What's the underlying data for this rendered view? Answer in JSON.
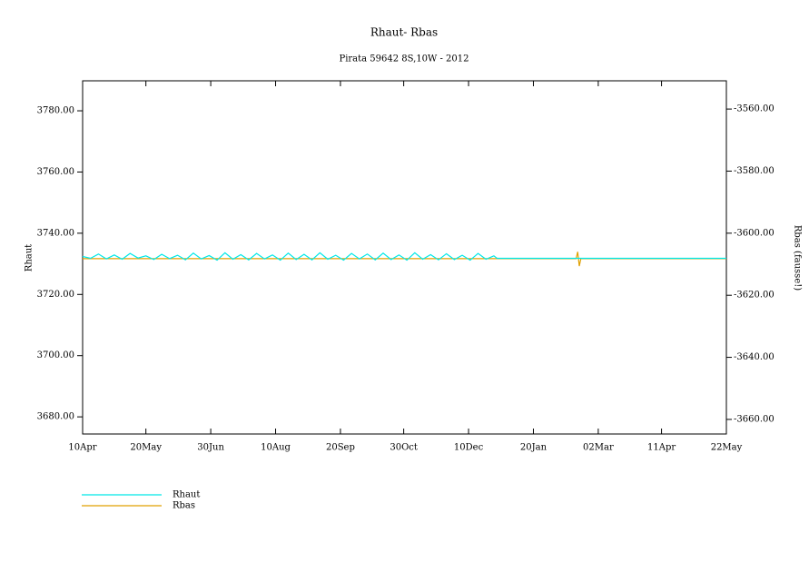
{
  "chart_data": {
    "type": "line",
    "title": "Rhaut-  Rbas",
    "subtitle": "Pirata 59642 8S,10W - 2012",
    "ylabel": "Rhaut",
    "y2label": "Rbas (fausse!)",
    "xlim": [
      0,
      407
    ],
    "xticks": [
      {
        "value": 0,
        "label": "10Apr"
      },
      {
        "value": 40,
        "label": "20May"
      },
      {
        "value": 81,
        "label": "30Jun"
      },
      {
        "value": 122,
        "label": "10Aug"
      },
      {
        "value": 163,
        "label": "20Sep"
      },
      {
        "value": 203,
        "label": "30Oct"
      },
      {
        "value": 244,
        "label": "10Dec"
      },
      {
        "value": 285,
        "label": "20Jan"
      },
      {
        "value": 326,
        "label": "02Mar"
      },
      {
        "value": 366,
        "label": "11Apr"
      },
      {
        "value": 407,
        "label": "22May"
      }
    ],
    "ylim": [
      3674.4,
      3789.8
    ],
    "yticks": [
      {
        "value": 3680,
        "label": "3680.00"
      },
      {
        "value": 3700,
        "label": "3700.00"
      },
      {
        "value": 3720,
        "label": "3720.00"
      },
      {
        "value": 3740,
        "label": "3740.00"
      },
      {
        "value": 3760,
        "label": "3760.00"
      },
      {
        "value": 3780,
        "label": "3780.00"
      }
    ],
    "y2lim": [
      -3664.7,
      -3550.9
    ],
    "y2ticks": [
      {
        "value": -3660,
        "label": "-3660.00"
      },
      {
        "value": -3640,
        "label": "-3640.00"
      },
      {
        "value": -3620,
        "label": "-3620.00"
      },
      {
        "value": -3600,
        "label": "-3600.00"
      },
      {
        "value": -3580,
        "label": "-3580.00"
      },
      {
        "value": -3560,
        "label": "-3560.00"
      }
    ],
    "series": [
      {
        "name": "Rbas",
        "color": "#e0a000",
        "axis": "y2",
        "x": [
          0,
          312,
          313,
          314,
          315,
          407
        ],
        "values": [
          -3608.2,
          -3608.2,
          -3606.0,
          -3610.6,
          -3608.2,
          -3608.2
        ]
      },
      {
        "name": "Rhaut",
        "color": "#00e8e8",
        "x": [
          0,
          5,
          10,
          15,
          20,
          25,
          30,
          35,
          40,
          45,
          50,
          55,
          60,
          65,
          70,
          75,
          80,
          85,
          90,
          95,
          100,
          105,
          110,
          115,
          120,
          125,
          130,
          135,
          140,
          145,
          150,
          155,
          160,
          165,
          170,
          175,
          180,
          185,
          190,
          195,
          200,
          205,
          210,
          215,
          220,
          225,
          230,
          235,
          240,
          245,
          250,
          255,
          260,
          262,
          407
        ],
        "values": [
          3732.4,
          3731.8,
          3733.2,
          3731.6,
          3732.9,
          3731.5,
          3733.4,
          3731.9,
          3732.6,
          3731.4,
          3733.1,
          3731.7,
          3732.8,
          3731.3,
          3733.5,
          3731.6,
          3732.7,
          3731.2,
          3733.6,
          3731.5,
          3733.0,
          3731.3,
          3733.4,
          3731.6,
          3732.9,
          3731.2,
          3733.5,
          3731.4,
          3733.1,
          3731.3,
          3733.6,
          3731.5,
          3732.8,
          3731.2,
          3733.4,
          3731.6,
          3733.2,
          3731.3,
          3733.5,
          3731.4,
          3732.9,
          3731.2,
          3733.6,
          3731.5,
          3733.0,
          3731.3,
          3733.3,
          3731.4,
          3732.8,
          3731.2,
          3733.4,
          3731.5,
          3732.6,
          3731.8,
          3731.8
        ]
      }
    ]
  }
}
